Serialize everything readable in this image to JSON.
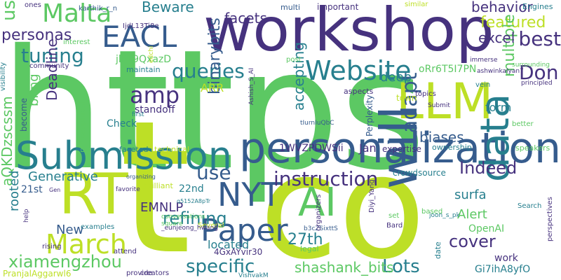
{
  "words": [
    {
      "text": "https",
      "color": "#5cc863",
      "vertical": false
    },
    {
      "text": "workshop",
      "color": "#46327e",
      "vertical": false
    },
    {
      "text": "co",
      "color": "#bddf26",
      "vertical": false
    },
    {
      "text": "t",
      "color": "#bddf26",
      "vertical": false
    },
    {
      "text": "personalization",
      "color": "#365c8d",
      "vertical": false
    },
    {
      "text": "Submission",
      "color": "#277f8e",
      "vertical": false
    },
    {
      "text": "RT",
      "color": "#bddf26",
      "vertical": false
    },
    {
      "text": "LLM",
      "color": "#bddf26",
      "vertical": false
    },
    {
      "text": "AI",
      "color": "#5cc863",
      "vertical": false
    },
    {
      "text": "Website",
      "color": "#277f8e",
      "vertical": false
    },
    {
      "text": "Paper",
      "color": "#365c8d",
      "vertical": false
    },
    {
      "text": "EACL",
      "color": "#365c8d",
      "vertical": false
    },
    {
      "text": "Malta",
      "color": "#5cc863",
      "vertical": false
    },
    {
      "text": "NYT",
      "color": "#365c8d",
      "vertical": false
    },
    {
      "text": "will",
      "color": "#365c8d",
      "vertical": true
    },
    {
      "text": "data",
      "color": "#277f8e",
      "vertical": true
    },
    {
      "text": "March",
      "color": "#bddf26",
      "vertical": false
    },
    {
      "text": "instruction",
      "color": "#46327e",
      "vertical": false
    },
    {
      "text": "amp",
      "color": "#46327e",
      "vertical": false
    },
    {
      "text": "queries",
      "color": "#277f8e",
      "vertical": false
    },
    {
      "text": "specific",
      "color": "#277f8e",
      "vertical": false
    },
    {
      "text": "xiamengzhou",
      "color": "#5cc863",
      "vertical": false
    },
    {
      "text": "tuning",
      "color": "#277f8e",
      "vertical": false
    },
    {
      "text": "Don",
      "color": "#46327e",
      "vertical": false
    },
    {
      "text": "best",
      "color": "#46327e",
      "vertical": false
    },
    {
      "text": "Lots",
      "color": "#277f8e",
      "vertical": false
    },
    {
      "text": "adapt",
      "color": "#365c8d",
      "vertical": true
    },
    {
      "text": "use",
      "color": "#365c8d",
      "vertical": false
    },
    {
      "text": "refining",
      "color": "#277f8e",
      "vertical": false
    },
    {
      "text": "us",
      "color": "#5cc863",
      "vertical": true
    },
    {
      "text": "personas",
      "color": "#46327e",
      "vertical": false
    },
    {
      "text": "Indeed",
      "color": "#46327e",
      "vertical": false
    },
    {
      "text": "cover",
      "color": "#46327e",
      "vertical": false
    },
    {
      "text": "shashank_bits",
      "color": "#5cc863",
      "vertical": false
    },
    {
      "text": "27th",
      "color": "#277f8e",
      "vertical": false
    },
    {
      "text": "featured",
      "color": "#bddf26",
      "vertical": false
    },
    {
      "text": "multiple",
      "color": "#5cc863",
      "vertical": true
    },
    {
      "text": "binarybits",
      "color": "#365c8d",
      "vertical": true
    },
    {
      "text": "facets",
      "color": "#46327e",
      "vertical": false
    },
    {
      "text": "behavior",
      "color": "#46327e",
      "vertical": false
    },
    {
      "text": "Beware",
      "color": "#277f8e",
      "vertical": false
    },
    {
      "text": "excel",
      "color": "#46327e",
      "vertical": false
    },
    {
      "text": "biases",
      "color": "#365c8d",
      "vertical": false
    },
    {
      "text": "aQKDzscssm",
      "color": "#5cc863",
      "vertical": true
    },
    {
      "text": "accepting",
      "color": "#277f8e",
      "vertical": true
    },
    {
      "text": "Deadline",
      "color": "#46327e",
      "vertical": true
    },
    {
      "text": "Generative",
      "color": "#277f8e",
      "vertical": false
    },
    {
      "text": "EMNLP",
      "color": "#46327e",
      "vertical": false
    },
    {
      "text": "deep",
      "color": "#277f8e",
      "vertical": false
    },
    {
      "text": "New",
      "color": "#365c8d",
      "vertical": false
    },
    {
      "text": "surfa",
      "color": "#277f8e",
      "vertical": false
    },
    {
      "text": "Alert",
      "color": "#5cc863",
      "vertical": false
    },
    {
      "text": "rooted",
      "color": "#277f8e",
      "vertical": true
    },
    {
      "text": "located",
      "color": "#277f8e",
      "vertical": false
    },
    {
      "text": "Jan",
      "color": "#46327e",
      "vertical": false
    },
    {
      "text": "form",
      "color": "#277f8e",
      "vertical": false
    },
    {
      "text": "ARR",
      "color": "#bddf26",
      "vertical": false
    },
    {
      "text": "Check",
      "color": "#277f8e",
      "vertical": false
    },
    {
      "text": "standoff",
      "color": "#46327e",
      "vertical": false
    },
    {
      "text": "bring",
      "color": "#5cc863",
      "vertical": true
    },
    {
      "text": "Gi7ihA8yfO",
      "color": "#277f8e",
      "vertical": false
    },
    {
      "text": "1WVZPDWSii",
      "color": "#46327e",
      "vertical": false
    },
    {
      "text": "jlFT9QxazD",
      "color": "#5cc863",
      "vertical": false
    },
    {
      "text": "oRr6T5I7PN",
      "color": "#5cc863",
      "vertical": false
    },
    {
      "text": "22nd",
      "color": "#277f8e",
      "vertical": false
    },
    {
      "text": "21st",
      "color": "#365c8d",
      "vertical": false
    },
    {
      "text": "work",
      "color": "#46327e",
      "vertical": false
    },
    {
      "text": "OpenAI",
      "color": "#5cc863",
      "vertical": false
    },
    {
      "text": "PranjalAggarwl6",
      "color": "#bddf26",
      "vertical": false
    },
    {
      "text": "4GxAYvir30",
      "color": "#46327e",
      "vertical": false
    },
    {
      "text": "crowdsource",
      "color": "#277f8e",
      "vertical": false
    },
    {
      "text": "expertise",
      "color": "#46327e",
      "vertical": false
    },
    {
      "text": "maintain",
      "color": "#277f8e",
      "vertical": false
    },
    {
      "text": "important",
      "color": "#46327e",
      "vertical": false
    },
    {
      "text": "Engines",
      "color": "#277f8e",
      "vertical": false
    },
    {
      "text": "become",
      "color": "#365c8d",
      "vertical": true
    },
    {
      "text": "Perplexity",
      "color": "#365c8d",
      "vertical": true
    },
    {
      "text": "topics",
      "color": "#46327e",
      "vertical": false
    },
    {
      "text": "town",
      "color": "#bddf26",
      "vertical": false
    },
    {
      "text": "philosophical",
      "color": "#5cc863",
      "vertical": true
    },
    {
      "text": "multi",
      "color": "#365c8d",
      "vertical": false
    },
    {
      "text": "aspects",
      "color": "#46327e",
      "vertical": false
    },
    {
      "text": "faceted",
      "color": "#277f8e",
      "vertical": false
    },
    {
      "text": "technical",
      "color": "#bddf26",
      "vertical": false
    },
    {
      "text": "ownership",
      "color": "#277f8e",
      "vertical": false
    },
    {
      "text": "speakers",
      "color": "#5cc863",
      "vertical": false
    },
    {
      "text": "brilliant",
      "color": "#bddf26",
      "vertical": false
    },
    {
      "text": "date",
      "color": "#277f8e",
      "vertical": true
    },
    {
      "text": "legal",
      "color": "#5cc863",
      "vertical": false
    },
    {
      "text": "perspectives",
      "color": "#46327e",
      "vertical": true
    },
    {
      "text": "Search",
      "color": "#277f8e",
      "vertical": false
    },
    {
      "text": "similar",
      "color": "#bddf26",
      "vertical": false
    },
    {
      "text": "ones",
      "color": "#46327e",
      "vertical": false
    },
    {
      "text": "karthik_r_n",
      "color": "#365c8d",
      "vertical": false
    },
    {
      "text": "IjdL13Ti8e",
      "color": "#46327e",
      "vertical": false
    },
    {
      "text": "interest",
      "color": "#5cc863",
      "vertical": false
    },
    {
      "text": "community",
      "color": "#46327e",
      "vertical": false
    },
    {
      "text": "visibility",
      "color": "#277f8e",
      "vertical": true
    },
    {
      "text": "post",
      "color": "#5cc863",
      "vertical": false
    },
    {
      "text": "Submit",
      "color": "#46327e",
      "vertical": false
    },
    {
      "text": "vein",
      "color": "#277f8e",
      "vertical": false
    },
    {
      "text": "principled",
      "color": "#46327e",
      "vertical": false
    },
    {
      "text": "immerse",
      "color": "#46327e",
      "vertical": false
    },
    {
      "text": "surrounding",
      "color": "#5cc863",
      "vertical": false
    },
    {
      "text": "ashwinkalyan7",
      "color": "#46327e",
      "vertical": false
    },
    {
      "text": "Ashish_S_AI",
      "color": "#46327e",
      "vertical": true
    },
    {
      "text": "tIurnIuQbC",
      "color": "#365c8d",
      "vertical": false
    },
    {
      "text": "first",
      "color": "#277f8e",
      "vertical": false
    },
    {
      "text": "better",
      "color": "#5cc863",
      "vertical": false
    },
    {
      "text": "Gen",
      "color": "#46327e",
      "vertical": false
    },
    {
      "text": "favorite",
      "color": "#46327e",
      "vertical": false
    },
    {
      "text": "organizing",
      "color": "#365c8d",
      "vertical": false
    },
    {
      "text": "q5152A8pTr",
      "color": "#277f8e",
      "vertical": false
    },
    {
      "text": "help",
      "color": "#46327e",
      "vertical": true
    },
    {
      "text": "rising",
      "color": "#46327e",
      "vertical": false
    },
    {
      "text": "attend",
      "color": "#46327e",
      "vertical": false
    },
    {
      "text": "examples",
      "color": "#277f8e",
      "vertical": false
    },
    {
      "text": "square",
      "color": "#5cc863",
      "vertical": false
    },
    {
      "text": "conversations",
      "color": "#5cc863",
      "vertical": false
    },
    {
      "text": "Several",
      "color": "#bddf26",
      "vertical": false
    },
    {
      "text": "_eunjeong_hwang",
      "color": "#46327e",
      "vertical": false
    },
    {
      "text": "Diyi_Yang",
      "color": "#46327e",
      "vertical": true
    },
    {
      "text": "b3cZSixttS",
      "color": "#365c8d",
      "vertical": false
    },
    {
      "text": "set",
      "color": "#5cc863",
      "vertical": false
    },
    {
      "text": "Bard",
      "color": "#46327e",
      "vertical": false
    },
    {
      "text": "based",
      "color": "#5cc863",
      "vertical": false
    },
    {
      "text": "joon_s_pk",
      "color": "#277f8e",
      "vertical": false
    },
    {
      "text": "organizers",
      "color": "#46327e",
      "vertical": true
    },
    {
      "text": "provide",
      "color": "#46327e",
      "vertical": false
    },
    {
      "text": "creators",
      "color": "#46327e",
      "vertical": false
    },
    {
      "text": "VishvakM",
      "color": "#277f8e",
      "vertical": false
    },
    {
      "text": "edchi",
      "color": "#bddf26",
      "vertical": true
    }
  ]
}
